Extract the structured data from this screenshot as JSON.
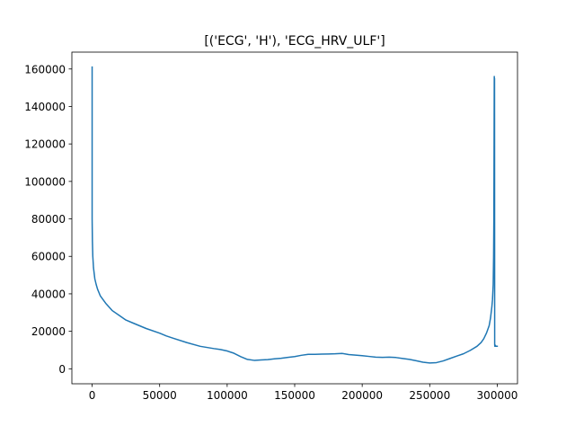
{
  "chart_data": {
    "type": "line",
    "title": "[('ECG', 'H'), 'ECG_HRV_ULF']",
    "xlabel": "",
    "ylabel": "",
    "xlim": [
      -15000,
      315000
    ],
    "ylim": [
      -8000,
      169000
    ],
    "xticks": [
      0,
      50000,
      100000,
      150000,
      200000,
      250000,
      300000
    ],
    "yticks": [
      0,
      20000,
      40000,
      60000,
      80000,
      100000,
      120000,
      140000,
      160000
    ],
    "grid": false,
    "legend": "none",
    "series": [
      {
        "color": "#1f77b4",
        "x": [
          0,
          0,
          200,
          500,
          1000,
          2000,
          3000,
          4000,
          6000,
          8000,
          10000,
          15000,
          20000,
          25000,
          30000,
          40000,
          50000,
          55000,
          60000,
          70000,
          80000,
          90000,
          95000,
          100000,
          105000,
          110000,
          115000,
          120000,
          125000,
          130000,
          135000,
          140000,
          145000,
          150000,
          155000,
          160000,
          165000,
          170000,
          175000,
          180000,
          185000,
          190000,
          195000,
          200000,
          205000,
          210000,
          215000,
          220000,
          225000,
          230000,
          235000,
          240000,
          245000,
          250000,
          255000,
          260000,
          265000,
          270000,
          275000,
          280000,
          285000,
          288000,
          290000,
          292000,
          294000,
          295000,
          296000,
          296500,
          297000,
          297300,
          297500,
          297800,
          297900,
          298000,
          298100,
          298200,
          298500,
          298600,
          299000,
          300000
        ],
        "y": [
          161000,
          80000,
          68000,
          60000,
          54000,
          48000,
          45000,
          42500,
          39000,
          37000,
          35000,
          31000,
          28500,
          26000,
          24500,
          21500,
          19000,
          17500,
          16300,
          14000,
          12000,
          10800,
          10300,
          9500,
          8300,
          6500,
          5000,
          4500,
          4700,
          4900,
          5300,
          5600,
          6100,
          6500,
          7200,
          7700,
          7700,
          7800,
          7900,
          8000,
          8200,
          7600,
          7300,
          7000,
          6600,
          6200,
          6100,
          6200,
          6000,
          5500,
          5000,
          4300,
          3500,
          3100,
          3300,
          4200,
          5500,
          6800,
          8000,
          9800,
          12000,
          14000,
          16000,
          19000,
          23000,
          27000,
          33000,
          37000,
          45000,
          60000,
          80000,
          156000,
          154000,
          155000,
          13000,
          12000,
          12000,
          12500,
          12000,
          12000
        ]
      }
    ]
  }
}
